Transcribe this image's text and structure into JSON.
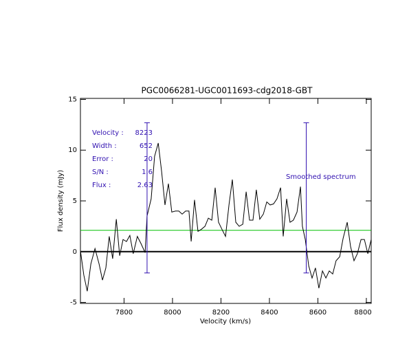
{
  "chart_data": {
    "type": "line",
    "title": "PGC0066281-UGC0011693-cdg2018-GBT",
    "x_label": "Velocity (km/s)",
    "y_label": "Flux density (mJy)",
    "x": [
      7620,
      7634,
      7648,
      7663,
      7680,
      7697,
      7711,
      7725,
      7739,
      7753,
      7768,
      7782,
      7796,
      7810,
      7824,
      7838,
      7855,
      7870,
      7887,
      7895,
      7912,
      7926,
      7941,
      7955,
      7969,
      7983,
      7997,
      8012,
      8026,
      8040,
      8054,
      8068,
      8077,
      8091,
      8105,
      8119,
      8134,
      8148,
      8162,
      8176,
      8190,
      8204,
      8219,
      8233,
      8247,
      8261,
      8275,
      8290,
      8304,
      8318,
      8332,
      8346,
      8360,
      8375,
      8389,
      8403,
      8417,
      8431,
      8446,
      8457,
      8471,
      8485,
      8499,
      8514,
      8528,
      8536,
      8548,
      8562,
      8576,
      8590,
      8604,
      8619,
      8633,
      8647,
      8661,
      8675,
      8690,
      8704,
      8721,
      8735,
      8749,
      8763,
      8778,
      8792,
      8806,
      8820
    ],
    "values": [
      0.1,
      -2.3,
      -3.9,
      -1.2,
      0.3,
      -1.2,
      -2.8,
      -1.6,
      1.5,
      -0.7,
      3.2,
      -0.4,
      1.2,
      1.0,
      1.6,
      -0.2,
      1.5,
      0.8,
      -0.1,
      3.5,
      5.2,
      9.4,
      10.7,
      7.9,
      4.6,
      6.7,
      3.9,
      4.0,
      4.0,
      3.7,
      4.0,
      4.0,
      1.0,
      5.1,
      2.0,
      2.2,
      2.5,
      3.3,
      3.1,
      6.3,
      2.9,
      2.2,
      1.5,
      4.6,
      7.1,
      2.9,
      2.5,
      2.7,
      5.9,
      3.1,
      3.1,
      6.1,
      3.2,
      3.7,
      4.9,
      4.6,
      4.7,
      5.2,
      6.3,
      1.5,
      5.2,
      2.9,
      3.1,
      3.9,
      6.4,
      2.5,
      1.2,
      -1.4,
      -2.6,
      -1.6,
      -3.6,
      -1.9,
      -2.6,
      -1.9,
      -2.2,
      -0.9,
      -0.5,
      1.3,
      2.9,
      0.5,
      -0.9,
      -0.2,
      1.2,
      1.2,
      -0.2,
      1.2
    ],
    "color": "#000000",
    "xlim": [
      7620,
      8820
    ],
    "ylim": [
      -5.1,
      15.1
    ],
    "xticks": [
      7800,
      8000,
      8200,
      8400,
      8600,
      8800
    ],
    "yticks": [
      -5,
      0,
      5,
      10,
      15
    ],
    "hlines": [
      {
        "y": 0,
        "color": "#000000"
      },
      {
        "y": 2.1,
        "color": "#00c000"
      }
    ],
    "vlines": {
      "x": [
        7895,
        8552
      ],
      "from": -2.1,
      "to": 12.7,
      "color": "#3010b0"
    },
    "stats": [
      {
        "label": "Velocity :",
        "value": 8223
      },
      {
        "label": "Width :",
        "value": 652
      },
      {
        "label": "Error :",
        "value": 20
      },
      {
        "label": "S/N :",
        "value": 1.6
      },
      {
        "label": "Flux :",
        "value": 2.63
      }
    ],
    "annotation": "Smoothed spectrum",
    "annotation_color": "#3010b0"
  }
}
